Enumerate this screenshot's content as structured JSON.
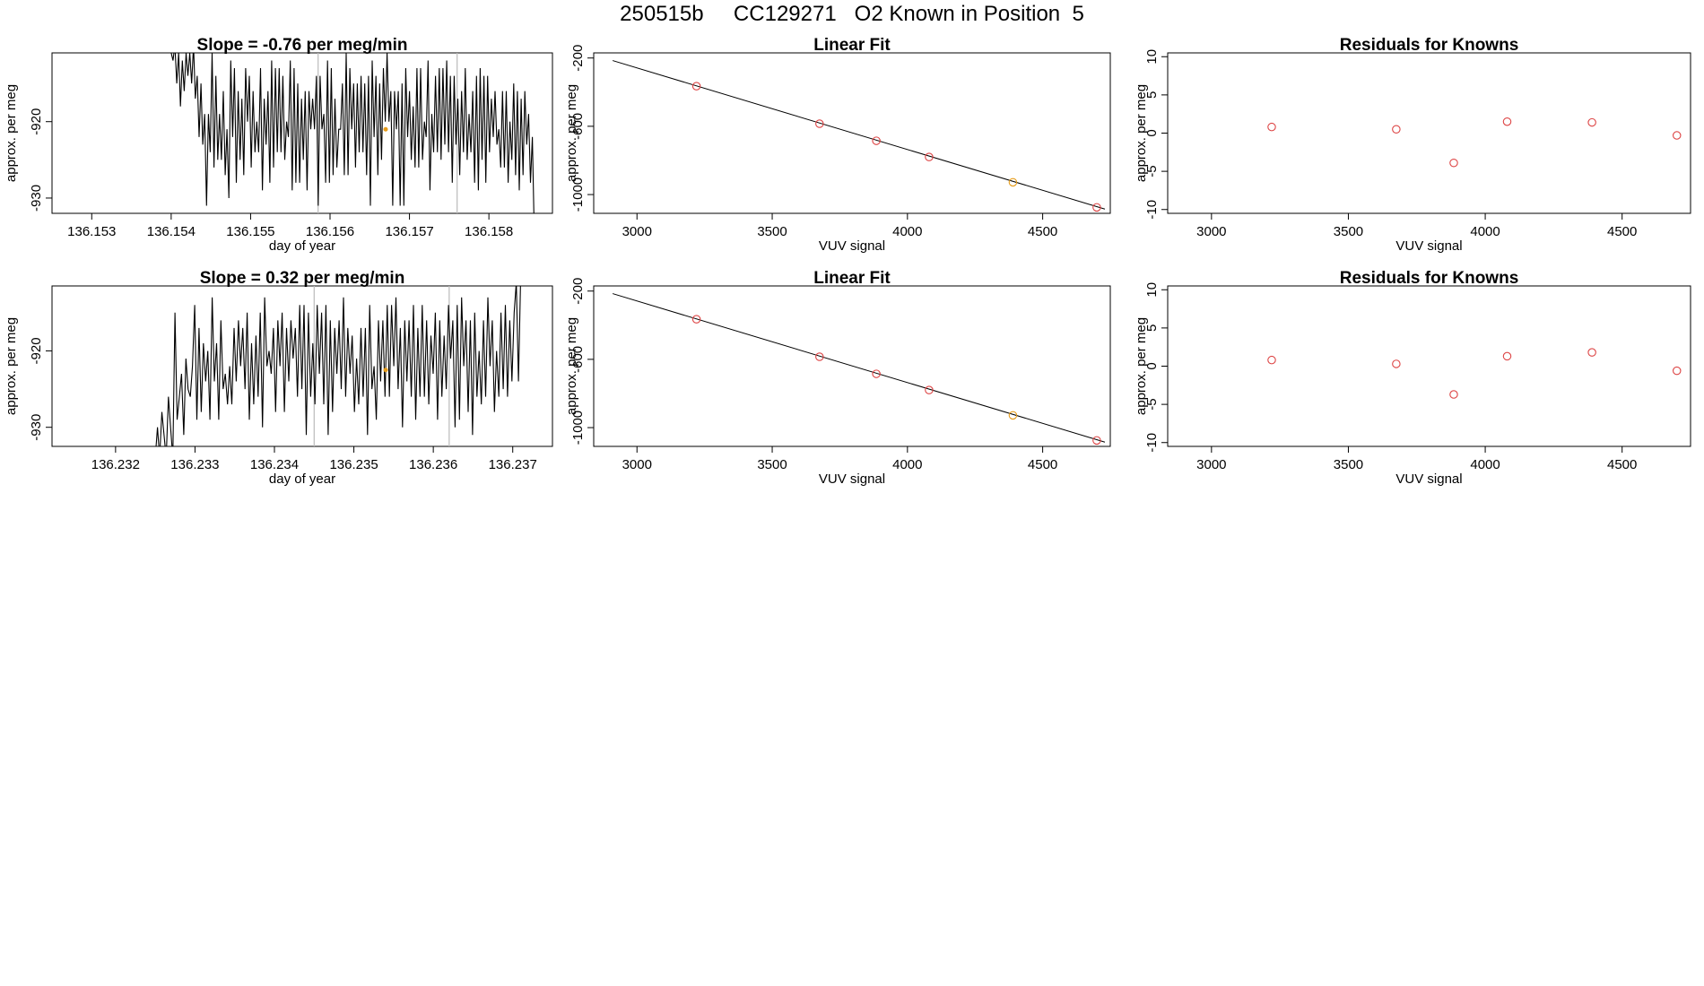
{
  "page_title": "250515b     CC129271   O2 Known in Position  5",
  "colors": {
    "line": "#000000",
    "known_point": "#dd4444",
    "position_point": "#e69c1a",
    "marker_line": "#bbbbbb"
  },
  "chart_data": [
    {
      "type": "line",
      "title": "Slope =  -0.76  per meg/min",
      "xlabel": "day of year",
      "ylabel": "approx. per meg",
      "xlim": [
        136.1525,
        136.1588
      ],
      "ylim": [
        -932,
        -911
      ],
      "xticks": [
        136.153,
        136.154,
        136.155,
        136.156,
        136.157,
        136.158
      ],
      "xtick_labels": [
        "136.153",
        "136.154",
        "136.155",
        "136.156",
        "136.157",
        "136.158"
      ],
      "yticks": [
        -920,
        -930
      ],
      "ytick_labels": [
        "-920",
        "-930"
      ],
      "x_start": 136.154,
      "x_end": 136.15857,
      "values": [
        -911,
        -912,
        -910,
        -915,
        -911,
        -918,
        -912,
        -916,
        -911,
        -914,
        -911,
        -915,
        -910,
        -917,
        -914,
        -922,
        -915,
        -923,
        -919,
        -931,
        -919,
        -924,
        -911,
        -926,
        -914,
        -925,
        -919,
        -925,
        -916,
        -927,
        -921,
        -930,
        -912,
        -922,
        -913,
        -928,
        -916,
        -925,
        -917,
        -927,
        -913,
        -920,
        -914,
        -926,
        -916,
        -924,
        -920,
        -924,
        -913,
        -929,
        -917,
        -923,
        -916,
        -928,
        -912,
        -926,
        -913,
        -924,
        -913,
        -924,
        -914,
        -925,
        -920,
        -922,
        -912,
        -929,
        -913,
        -928,
        -915,
        -928,
        -917,
        -925,
        -916,
        -929,
        -916,
        -921,
        -917,
        -921,
        -914,
        -931,
        -914,
        -921,
        -919,
        -928,
        -912,
        -928,
        -913,
        -927,
        -917,
        -926,
        -921,
        -921,
        -915,
        -927,
        -911,
        -927,
        -913,
        -921,
        -915,
        -926,
        -915,
        -924,
        -914,
        -924,
        -915,
        -927,
        -914,
        -931,
        -912,
        -922,
        -914,
        -927,
        -915,
        -925,
        -913,
        -920,
        -911,
        -920,
        -916,
        -931,
        -916,
        -921,
        -916,
        -931,
        -915,
        -931,
        -913,
        -922,
        -916,
        -925,
        -918,
        -926,
        -913,
        -926,
        -913,
        -925,
        -920,
        -922,
        -912,
        -929,
        -919,
        -924,
        -914,
        -924,
        -913,
        -925,
        -913,
        -923,
        -912,
        -924,
        -914,
        -928,
        -914,
        -923,
        -917,
        -927,
        -916,
        -924,
        -913,
        -925,
        -919,
        -924,
        -916,
        -928,
        -914,
        -929,
        -913,
        -925,
        -914,
        -928,
        -914,
        -924,
        -917,
        -922,
        -916,
        -923,
        -921,
        -926,
        -916,
        -926,
        -916,
        -928,
        -920,
        -925,
        -915,
        -927,
        -916,
        -929,
        -917,
        -927,
        -916,
        -923,
        -919,
        -928,
        -922,
        -934
      ],
      "vlines": [
        136.15585,
        136.1576
      ],
      "highlight_point": {
        "x": 136.1567,
        "y": -921
      }
    },
    {
      "type": "scatter",
      "title": "Linear Fit",
      "xlabel": "VUV signal",
      "ylabel": "approx. per meg",
      "xlim": [
        2840,
        4750
      ],
      "ylim": [
        -1110,
        -170
      ],
      "xticks": [
        3000,
        3500,
        4000,
        4500
      ],
      "xtick_labels": [
        "3000",
        "3500",
        "4000",
        "4500"
      ],
      "yticks": [
        -200,
        -600,
        -1000
      ],
      "ytick_labels": [
        "-200",
        "-600",
        "-1000"
      ],
      "fit_line": {
        "x": [
          2910,
          4730
        ],
        "y": [
          -215,
          -1085
        ]
      },
      "points": [
        {
          "x": 3220,
          "y": -365,
          "kind": "known"
        },
        {
          "x": 3675,
          "y": -585,
          "kind": "known"
        },
        {
          "x": 3885,
          "y": -685,
          "kind": "known"
        },
        {
          "x": 4080,
          "y": -780,
          "kind": "known"
        },
        {
          "x": 4390,
          "y": -928,
          "kind": "position"
        },
        {
          "x": 4700,
          "y": -1075,
          "kind": "known"
        }
      ]
    },
    {
      "type": "scatter",
      "title": "Residuals for Knowns",
      "xlabel": "VUV signal",
      "ylabel": "approx. per meg",
      "xlim": [
        2840,
        4750
      ],
      "ylim": [
        -10.5,
        10.5
      ],
      "xticks": [
        3000,
        3500,
        4000,
        4500
      ],
      "xtick_labels": [
        "3000",
        "3500",
        "4000",
        "4500"
      ],
      "yticks": [
        10,
        5,
        0,
        -5,
        -10
      ],
      "ytick_labels": [
        "10",
        "5",
        "0",
        "-5",
        "-10"
      ],
      "points": [
        {
          "x": 3220,
          "y": 0.8,
          "kind": "known"
        },
        {
          "x": 3675,
          "y": 0.5,
          "kind": "known"
        },
        {
          "x": 3885,
          "y": -3.9,
          "kind": "known"
        },
        {
          "x": 4080,
          "y": 1.5,
          "kind": "known"
        },
        {
          "x": 4390,
          "y": 1.4,
          "kind": "known"
        },
        {
          "x": 4700,
          "y": -0.3,
          "kind": "known"
        }
      ]
    },
    {
      "type": "line",
      "title": "Slope =  0.32  per meg/min",
      "xlabel": "day of year",
      "ylabel": "approx. per meg",
      "xlim": [
        136.2312,
        136.2375
      ],
      "ylim": [
        -932.5,
        -911.5
      ],
      "xticks": [
        136.232,
        136.233,
        136.234,
        136.235,
        136.236,
        136.237
      ],
      "xtick_labels": [
        "136.232",
        "136.233",
        "136.234",
        "136.235",
        "136.236",
        "136.237"
      ],
      "yticks": [
        -920,
        -930
      ],
      "ytick_labels": [
        "-920",
        "-930"
      ],
      "x_start": 136.2325,
      "x_end": 136.2371,
      "values": [
        -934,
        -930,
        -934,
        -928,
        -931,
        -934,
        -926,
        -930,
        -934,
        -915,
        -929,
        -926,
        -923,
        -931,
        -921,
        -925,
        -926,
        -922,
        -914,
        -929,
        -917,
        -928,
        -919,
        -924,
        -920,
        -929,
        -913,
        -924,
        -919,
        -929,
        -916,
        -925,
        -923,
        -927,
        -922,
        -927,
        -917,
        -924,
        -916,
        -922,
        -917,
        -925,
        -915,
        -929,
        -919,
        -927,
        -918,
        -926,
        -915,
        -930,
        -913,
        -922,
        -920,
        -923,
        -917,
        -928,
        -916,
        -922,
        -915,
        -928,
        -917,
        -924,
        -916,
        -921,
        -917,
        -926,
        -914,
        -925,
        -914,
        -931,
        -915,
        -926,
        -919,
        -927,
        -914,
        -923,
        -915,
        -927,
        -914,
        -931,
        -916,
        -928,
        -917,
        -923,
        -916,
        -925,
        -913,
        -926,
        -917,
        -923,
        -918,
        -928,
        -921,
        -927,
        -917,
        -926,
        -917,
        -931,
        -914,
        -925,
        -922,
        -929,
        -916,
        -924,
        -916,
        -926,
        -914,
        -926,
        -914,
        -922,
        -913,
        -925,
        -917,
        -930,
        -916,
        -924,
        -916,
        -926,
        -914,
        -929,
        -917,
        -926,
        -914,
        -926,
        -916,
        -927,
        -918,
        -923,
        -915,
        -929,
        -916,
        -926,
        -918,
        -925,
        -914,
        -921,
        -916,
        -930,
        -914,
        -929,
        -913,
        -922,
        -916,
        -928,
        -916,
        -931,
        -915,
        -926,
        -920,
        -927,
        -916,
        -926,
        -913,
        -922,
        -916,
        -928,
        -920,
        -926,
        -915,
        -925,
        -914,
        -926,
        -916,
        -924,
        -915,
        -911,
        -924,
        -910
      ],
      "vlines": [
        136.2345,
        136.2362
      ],
      "highlight_point": {
        "x": 136.2354,
        "y": -922.5
      }
    },
    {
      "type": "scatter",
      "title": "Linear Fit",
      "xlabel": "VUV signal",
      "ylabel": "approx. per meg",
      "xlim": [
        2840,
        4750
      ],
      "ylim": [
        -1110,
        -170
      ],
      "xticks": [
        3000,
        3500,
        4000,
        4500
      ],
      "xtick_labels": [
        "3000",
        "3500",
        "4000",
        "4500"
      ],
      "yticks": [
        -200,
        -600,
        -1000
      ],
      "ytick_labels": [
        "-200",
        "-600",
        "-1000"
      ],
      "fit_line": {
        "x": [
          2910,
          4730
        ],
        "y": [
          -215,
          -1085
        ]
      },
      "points": [
        {
          "x": 3220,
          "y": -365,
          "kind": "known"
        },
        {
          "x": 3675,
          "y": -585,
          "kind": "known"
        },
        {
          "x": 3885,
          "y": -685,
          "kind": "known"
        },
        {
          "x": 4080,
          "y": -780,
          "kind": "known"
        },
        {
          "x": 4390,
          "y": -928,
          "kind": "position"
        },
        {
          "x": 4700,
          "y": -1075,
          "kind": "known"
        }
      ]
    },
    {
      "type": "scatter",
      "title": "Residuals for Knowns",
      "xlabel": "VUV signal",
      "ylabel": "approx. per meg",
      "xlim": [
        2840,
        4750
      ],
      "ylim": [
        -10.5,
        10.5
      ],
      "xticks": [
        3000,
        3500,
        4000,
        4500
      ],
      "xtick_labels": [
        "3000",
        "3500",
        "4000",
        "4500"
      ],
      "yticks": [
        10,
        5,
        0,
        -5,
        -10
      ],
      "ytick_labels": [
        "10",
        "5",
        "0",
        "-5",
        "-10"
      ],
      "points": [
        {
          "x": 3220,
          "y": 0.8,
          "kind": "known"
        },
        {
          "x": 3675,
          "y": 0.3,
          "kind": "known"
        },
        {
          "x": 3885,
          "y": -3.7,
          "kind": "known"
        },
        {
          "x": 4080,
          "y": 1.3,
          "kind": "known"
        },
        {
          "x": 4390,
          "y": 1.8,
          "kind": "known"
        },
        {
          "x": 4700,
          "y": -0.6,
          "kind": "known"
        }
      ]
    }
  ]
}
